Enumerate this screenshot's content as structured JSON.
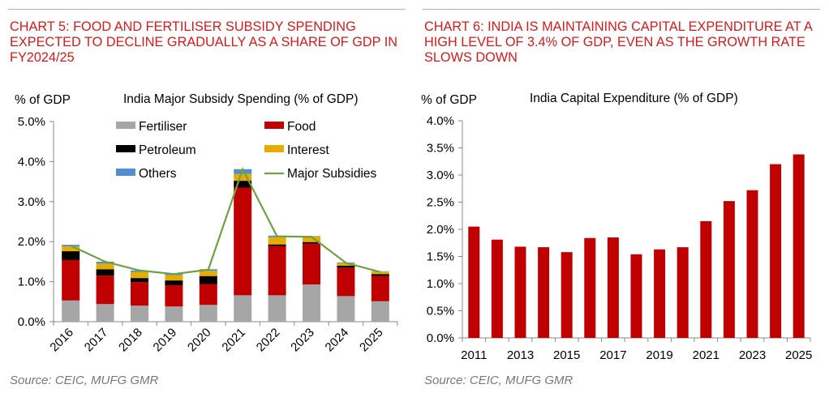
{
  "left": {
    "heading": "CHART 5: FOOD AND FERTILISER SUBSIDY SPENDING EXPECTED TO DECLINE GRADUALLY AS A SHARE OF GDP IN FY2024/25",
    "source": "Source: CEIC, MUFG GMR"
  },
  "right": {
    "heading": "CHART 6: INDIA IS MAINTAINING CAPITAL EXPENDITURE AT A HIGH LEVEL OF 3.4% OF GDP, EVEN AS THE GROWTH RATE SLOWS DOWN",
    "source": "Source: CEIC, MUFG GMR"
  },
  "chart_data": [
    {
      "type": "bar",
      "stacked": true,
      "title": "India Major Subsidy Spending (% of GDP)",
      "ylabel": "% of GDP",
      "ylim": [
        0,
        5
      ],
      "yticks": [
        "0.0%",
        "1.0%",
        "2.0%",
        "3.0%",
        "4.0%",
        "5.0%"
      ],
      "categories": [
        "2016",
        "2017",
        "2018",
        "2019",
        "2020",
        "2021",
        "2022",
        "2023",
        "2024",
        "2025"
      ],
      "series": [
        {
          "name": "Fertiliser",
          "color": "#a6a6a6",
          "values": [
            0.53,
            0.44,
            0.4,
            0.38,
            0.42,
            0.66,
            0.66,
            0.93,
            0.64,
            0.51
          ]
        },
        {
          "name": "Food",
          "color": "#c00000",
          "values": [
            1.01,
            0.71,
            0.59,
            0.53,
            0.52,
            2.69,
            1.23,
            1.02,
            0.71,
            0.63
          ]
        },
        {
          "name": "Petroleum",
          "color": "#000000",
          "values": [
            0.22,
            0.16,
            0.1,
            0.12,
            0.2,
            0.17,
            0.04,
            0.04,
            0.05,
            0.05
          ]
        },
        {
          "name": "Interest",
          "color": "#e6ac00",
          "values": [
            0.12,
            0.14,
            0.15,
            0.13,
            0.13,
            0.17,
            0.18,
            0.14,
            0.06,
            0.06
          ]
        },
        {
          "name": "Others",
          "color": "#4f8fcf",
          "values": [
            0.04,
            0.05,
            0.04,
            0.03,
            0.04,
            0.12,
            0.04,
            0.01,
            0.02,
            0.01
          ]
        }
      ],
      "line_series": {
        "name": "Major Subsidies",
        "color": "#70a140",
        "values": [
          1.9,
          1.5,
          1.28,
          1.19,
          1.3,
          3.81,
          2.13,
          2.12,
          1.47,
          1.24
        ]
      },
      "legend": "top-right",
      "grid": false
    },
    {
      "type": "bar",
      "title": "India Capital Expenditure (% of GDP)",
      "ylabel": "% of GDP",
      "ylim": [
        0,
        4
      ],
      "yticks": [
        "0.0%",
        "0.5%",
        "1.0%",
        "1.5%",
        "2.0%",
        "2.5%",
        "3.0%",
        "3.5%",
        "4.0%"
      ],
      "categories": [
        "2011",
        "2012",
        "2013",
        "2014",
        "2015",
        "2016",
        "2017",
        "2018",
        "2019",
        "2020",
        "2021",
        "2022",
        "2023",
        "2024",
        "2025"
      ],
      "xtick_labels": [
        "2011",
        "",
        "2013",
        "",
        "2015",
        "",
        "2017",
        "",
        "2019",
        "",
        "2021",
        "",
        "2023",
        "",
        "2025"
      ],
      "values": [
        2.05,
        1.81,
        1.68,
        1.67,
        1.58,
        1.84,
        1.85,
        1.54,
        1.63,
        1.67,
        2.15,
        2.52,
        2.72,
        3.2,
        3.38
      ],
      "color": "#c00000",
      "grid": false
    }
  ]
}
